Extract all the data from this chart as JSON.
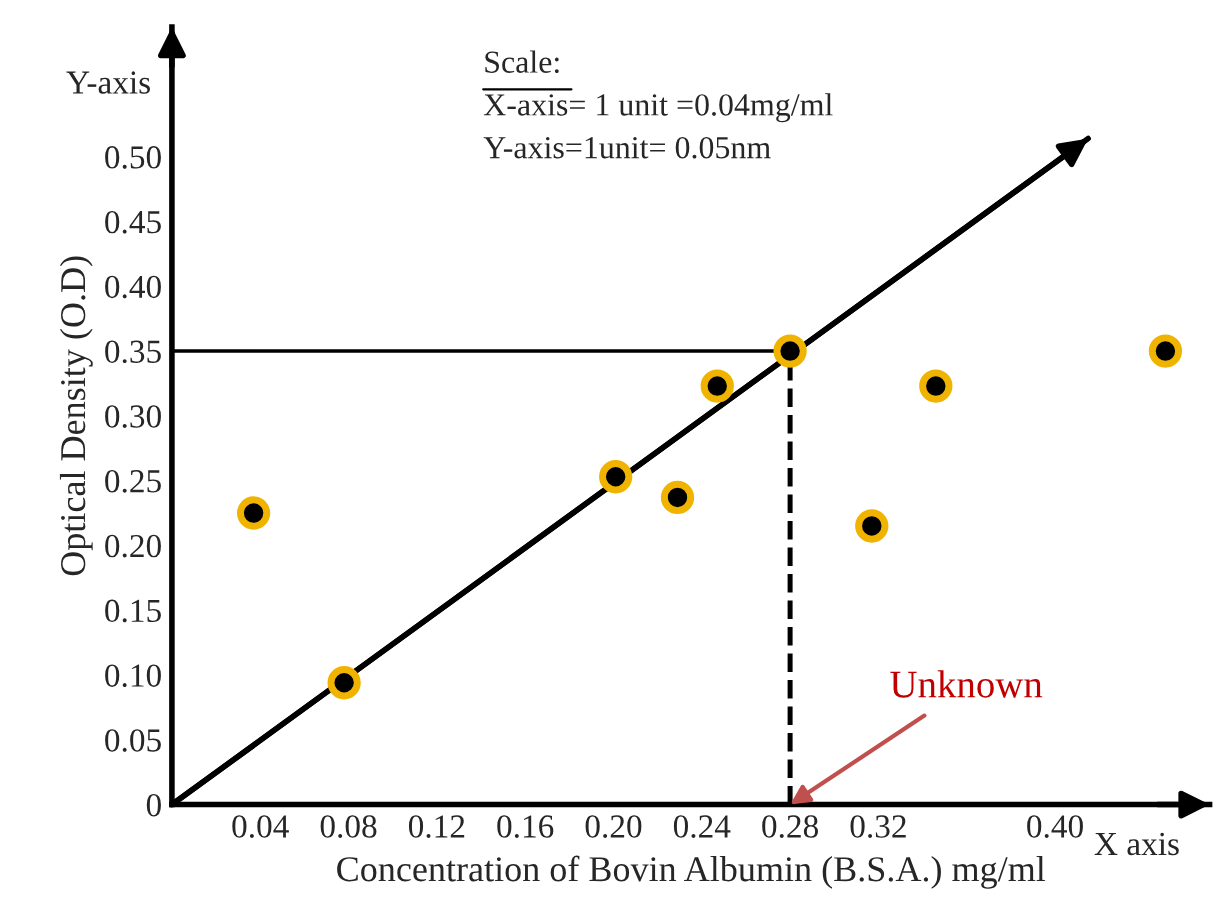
{
  "chart_data": {
    "type": "scatter",
    "xlabel": "Concentration of Bovin Albumin (B.S.A.) mg/ml",
    "ylabel": "Optical Density (O.D)",
    "xlim": [
      0,
      0.47
    ],
    "ylim": [
      0,
      0.6
    ],
    "xticks": [
      0.04,
      0.08,
      0.12,
      0.16,
      {
        "value": 0.2,
        "label": "0.20"
      },
      0.24,
      0.28,
      0.32,
      {
        "value": 0.4,
        "label": "0.40"
      }
    ],
    "yticks": [
      0,
      0.05,
      {
        "value": 0.1,
        "label": "0.10"
      },
      0.15,
      {
        "value": 0.2,
        "label": "0.20"
      },
      0.25,
      {
        "value": 0.3,
        "label": "0.30"
      },
      0.35,
      {
        "value": 0.4,
        "label": "0.40"
      },
      0.45,
      {
        "value": 0.5,
        "label": "0.50"
      }
    ],
    "grid": false,
    "series": [
      {
        "marker": "circle",
        "color": "#000000",
        "x": [
          0.037,
          0.078,
          0.201,
          0.229,
          0.247,
          0.28,
          0.317,
          0.346,
          0.45
        ],
        "values": [
          0.225,
          0.094,
          0.253,
          0.237,
          0.323,
          0.35,
          0.215,
          0.323,
          0.35
        ]
      },
      {
        "type": "line",
        "color": "#000000",
        "x": [
          0,
          0.415
        ],
        "values": [
          0,
          0.514
        ]
      }
    ],
    "ref_lines": [
      {
        "axis": "y",
        "value": 0.35,
        "color": "#000000"
      },
      {
        "axis": "x",
        "value": 0.28,
        "color": "#000000",
        "line_style": "dashed"
      }
    ],
    "annotations": [
      "Scale:",
      "X-axis= 1 unit =0.04mg/ml",
      "Y-axis=1unit= 0.05nm",
      "Y-axis",
      "X axis",
      {
        "text": "Unknown",
        "x": 0.28,
        "y": 0
      }
    ]
  }
}
